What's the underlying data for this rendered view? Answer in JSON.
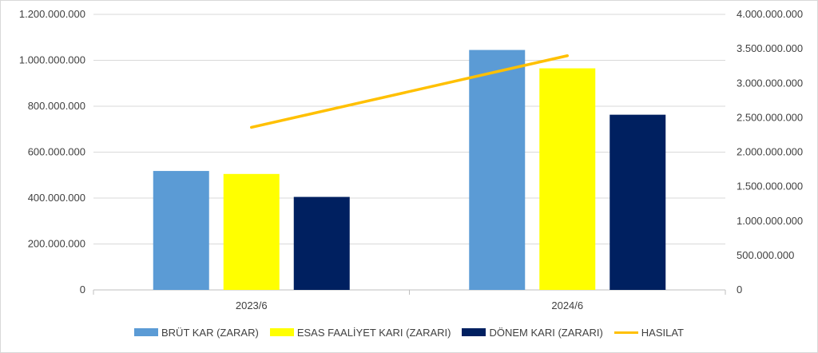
{
  "chart_data": {
    "type": "bar",
    "categories": [
      "2023/6",
      "2024/6"
    ],
    "series": [
      {
        "name": "BRÜT KAR (ZARAR)",
        "type": "bar",
        "axis": "left",
        "color": "#5b9bd5",
        "values": [
          518000000,
          1045000000
        ]
      },
      {
        "name": "ESAS FAALİYET KARI (ZARARI)",
        "type": "bar",
        "axis": "left",
        "color": "#ffff00",
        "values": [
          505000000,
          965000000
        ]
      },
      {
        "name": "DÖNEM KARI (ZARARI)",
        "type": "bar",
        "axis": "left",
        "color": "#002060",
        "values": [
          405000000,
          763000000
        ]
      },
      {
        "name": "HASILAT",
        "type": "line",
        "axis": "right",
        "color": "#ffc000",
        "values": [
          2360000000,
          3400000000
        ]
      }
    ],
    "y_left": {
      "ylim": [
        0,
        1200000000
      ],
      "tick_labels": [
        "0",
        "200.000.000",
        "400.000.000",
        "600.000.000",
        "800.000.000",
        "1.000.000.000",
        "1.200.000.000"
      ]
    },
    "y_right": {
      "ylim": [
        0,
        4000000000
      ],
      "tick_labels": [
        "0",
        "500.000.000",
        "1.000.000.000",
        "1.500.000.000",
        "2.000.000.000",
        "2.500.000.000",
        "3.000.000.000",
        "3.500.000.000",
        "4.000.000.000"
      ]
    },
    "title": "",
    "xlabel": "",
    "ylabel": "",
    "grid": true,
    "legend_position": "bottom"
  }
}
